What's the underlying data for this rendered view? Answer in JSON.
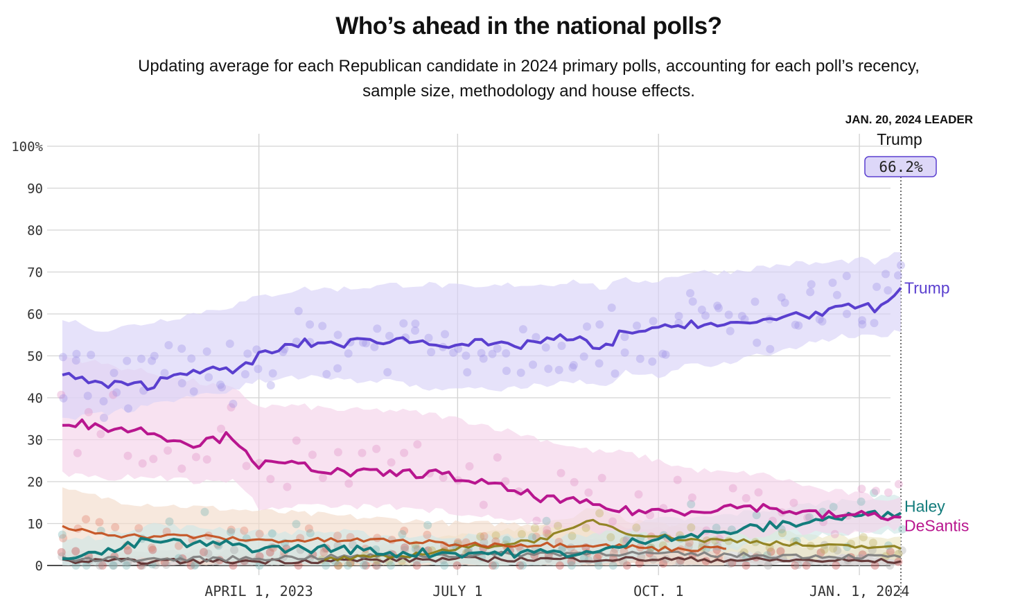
{
  "header": {
    "title": "Who’s ahead in the national polls?",
    "subtitle": "Updating average for each Republican candidate in 2024 primary polls, accounting for each poll’s recency, sample size, methodology and house effects."
  },
  "leader_box": {
    "heading": "JAN. 20, 2024 LEADER",
    "name": "Trump",
    "value": "66.2%"
  },
  "chart_data": {
    "type": "line",
    "title": "Who’s ahead in the national polls?",
    "xlabel": "",
    "ylabel": "",
    "ylim": [
      0,
      100
    ],
    "yticks": [
      0,
      10,
      20,
      30,
      40,
      50,
      60,
      70,
      80,
      90,
      100
    ],
    "ytick_labels": [
      "0",
      "10",
      "20",
      "30",
      "40",
      "50",
      "60",
      "70",
      "80",
      "90",
      "100%"
    ],
    "xlim": [
      "2023-01-01",
      "2024-01-20"
    ],
    "xticks": [
      {
        "date": "2023-04-01",
        "label": "APRIL 1, 2023"
      },
      {
        "date": "2023-07-01",
        "label": "JULY 1"
      },
      {
        "date": "2023-10-01",
        "label": "OCT. 1"
      },
      {
        "date": "2024-01-01",
        "label": "JAN. 1, 2024"
      }
    ],
    "grid": true,
    "legend": "end-labels",
    "series": [
      {
        "name": "Trump",
        "color": "#5a3fcf",
        "band_color": "#d9d2f7",
        "dot_color": "#9c8ee6",
        "label_offset": 0,
        "x": [
          "2023-01-01",
          "2023-01-20",
          "2023-02-10",
          "2023-03-01",
          "2023-03-20",
          "2023-04-01",
          "2023-04-20",
          "2023-05-10",
          "2023-06-01",
          "2023-06-20",
          "2023-07-10",
          "2023-07-25",
          "2023-08-10",
          "2023-08-25",
          "2023-09-05",
          "2023-09-15",
          "2023-10-01",
          "2023-10-15",
          "2023-11-01",
          "2023-11-15",
          "2023-12-01",
          "2023-12-15",
          "2024-01-01",
          "2024-01-10",
          "2024-01-20"
        ],
        "values": [
          45.5,
          43,
          43,
          47,
          46,
          50,
          53,
          53,
          54,
          53,
          53,
          52,
          54,
          54,
          51,
          56,
          56,
          58,
          57,
          58,
          60,
          60,
          62,
          61,
          66.2
        ],
        "band": [
          [
            35,
            59
          ],
          [
            36,
            56
          ],
          [
            38,
            58
          ],
          [
            40,
            60
          ],
          [
            42,
            62
          ],
          [
            44,
            64
          ],
          [
            45,
            66
          ],
          [
            44,
            66
          ],
          [
            44,
            67
          ],
          [
            42,
            67
          ],
          [
            42,
            66
          ],
          [
            42,
            67
          ],
          [
            43,
            67
          ],
          [
            44,
            68
          ],
          [
            42,
            66
          ],
          [
            46,
            68
          ],
          [
            45,
            68
          ],
          [
            48,
            70
          ],
          [
            48,
            70
          ],
          [
            50,
            71
          ],
          [
            52,
            72
          ],
          [
            54,
            72
          ],
          [
            55,
            73
          ],
          [
            54,
            72
          ],
          [
            56,
            75
          ]
        ]
      },
      {
        "name": "DeSantis",
        "color": "#b8168f",
        "band_color": "#f4d3e9",
        "dot_color": "#e08bc4",
        "label_offset": 12,
        "x": [
          "2023-01-01",
          "2023-01-20",
          "2023-02-10",
          "2023-03-01",
          "2023-03-20",
          "2023-04-01",
          "2023-04-20",
          "2023-05-10",
          "2023-06-01",
          "2023-06-20",
          "2023-07-10",
          "2023-07-25",
          "2023-08-10",
          "2023-08-25",
          "2023-09-05",
          "2023-09-15",
          "2023-10-01",
          "2023-10-15",
          "2023-11-01",
          "2023-11-15",
          "2023-12-01",
          "2023-12-15",
          "2024-01-01",
          "2024-01-10",
          "2024-01-20"
        ],
        "values": [
          34.5,
          33,
          32,
          29,
          31,
          24,
          24,
          22,
          22,
          22,
          20,
          18,
          16,
          15,
          14,
          13,
          13,
          13,
          14,
          14,
          13,
          12,
          12,
          12,
          11.5
        ],
        "band": [
          [
            22,
            50
          ],
          [
            21,
            48
          ],
          [
            21,
            46
          ],
          [
            20,
            44
          ],
          [
            20,
            42
          ],
          [
            14,
            38
          ],
          [
            14,
            38
          ],
          [
            14,
            37
          ],
          [
            14,
            37
          ],
          [
            13,
            36
          ],
          [
            12,
            34
          ],
          [
            11,
            32
          ],
          [
            10,
            30
          ],
          [
            9,
            28
          ],
          [
            8,
            27
          ],
          [
            8,
            27
          ],
          [
            7,
            25
          ],
          [
            7,
            23
          ],
          [
            7,
            22
          ],
          [
            7,
            22
          ],
          [
            8,
            20
          ],
          [
            8,
            18
          ],
          [
            8,
            17
          ],
          [
            9,
            16
          ],
          [
            9,
            16
          ]
        ]
      },
      {
        "name": "Haley",
        "color": "#137c7c",
        "band_color": "#cfe6e6",
        "dot_color": "#6fb1b1",
        "label_offset": -10,
        "x": [
          "2023-01-01",
          "2023-01-20",
          "2023-02-10",
          "2023-03-01",
          "2023-03-20",
          "2023-04-01",
          "2023-04-20",
          "2023-05-10",
          "2023-06-01",
          "2023-06-20",
          "2023-07-10",
          "2023-07-25",
          "2023-08-10",
          "2023-08-25",
          "2023-09-05",
          "2023-09-15",
          "2023-10-01",
          "2023-10-15",
          "2023-11-01",
          "2023-11-15",
          "2023-12-01",
          "2023-12-15",
          "2024-01-01",
          "2024-01-10",
          "2024-01-20"
        ],
        "values": [
          2.5,
          3,
          6,
          5,
          5,
          4,
          4,
          4,
          3,
          3,
          3,
          3,
          3,
          3,
          3,
          5,
          7,
          7,
          8,
          9,
          10,
          11,
          12,
          12,
          12.5
        ],
        "band": [
          [
            0,
            6
          ],
          [
            0,
            7
          ],
          [
            2,
            10
          ],
          [
            1,
            9
          ],
          [
            1,
            9
          ],
          [
            0,
            8
          ],
          [
            0,
            8
          ],
          [
            0,
            8
          ],
          [
            0,
            7
          ],
          [
            0,
            7
          ],
          [
            0,
            7
          ],
          [
            0,
            7
          ],
          [
            0,
            7
          ],
          [
            0,
            7
          ],
          [
            0,
            8
          ],
          [
            1,
            9
          ],
          [
            3,
            11
          ],
          [
            3,
            11
          ],
          [
            4,
            12
          ],
          [
            5,
            13
          ],
          [
            6,
            14
          ],
          [
            7,
            15
          ],
          [
            8,
            16
          ],
          [
            8,
            16
          ],
          [
            8,
            17
          ]
        ]
      },
      {
        "name": "",
        "color": "#c24a17",
        "band_color": "#f2dccb",
        "dot_color": "#e07a68",
        "x": [
          "2023-01-01",
          "2023-02-01",
          "2023-03-01",
          "2023-04-01",
          "2023-05-01",
          "2023-06-01",
          "2023-07-01",
          "2023-08-01",
          "2023-09-01",
          "2023-10-01",
          "2023-11-01"
        ],
        "values": [
          9,
          7,
          7,
          6,
          6,
          6,
          5,
          5,
          5,
          4,
          4
        ],
        "band": [
          [
            2,
            18
          ],
          [
            1,
            15
          ],
          [
            1,
            14
          ],
          [
            0,
            13
          ],
          [
            0,
            12
          ],
          [
            0,
            11
          ],
          [
            0,
            10
          ],
          [
            0,
            10
          ],
          [
            0,
            10
          ],
          [
            0,
            9
          ],
          [
            0,
            8
          ]
        ]
      },
      {
        "name": "",
        "color": "#8a7a12",
        "band_color": "#ece6c4",
        "dot_color": "#b9ab55",
        "x": [
          "2023-05-01",
          "2023-06-01",
          "2023-07-01",
          "2023-07-20",
          "2023-08-05",
          "2023-08-20",
          "2023-09-01",
          "2023-09-15",
          "2023-10-01",
          "2023-10-20",
          "2023-11-10",
          "2023-12-01",
          "2023-12-20",
          "2024-01-10",
          "2024-01-20"
        ],
        "values": [
          1.5,
          2,
          4,
          5,
          6,
          8,
          11,
          8,
          7,
          6,
          6,
          5,
          4.5,
          4.5,
          4
        ],
        "band": [
          [
            0,
            4
          ],
          [
            0,
            5
          ],
          [
            1,
            7
          ],
          [
            2,
            8
          ],
          [
            3,
            9
          ],
          [
            4,
            11
          ],
          [
            7,
            14
          ],
          [
            5,
            11
          ],
          [
            4,
            10
          ],
          [
            3,
            9
          ],
          [
            3,
            9
          ],
          [
            2,
            8
          ],
          [
            2,
            7
          ],
          [
            2,
            7
          ],
          [
            1,
            7
          ]
        ]
      },
      {
        "name": "",
        "color": "#7b7b7b",
        "band_color": "#d6d6d6",
        "dot_color": "#a3a3a3",
        "x": [
          "2023-01-01",
          "2023-03-01",
          "2023-05-01",
          "2023-07-01",
          "2023-09-01",
          "2023-11-01",
          "2024-01-20"
        ],
        "values": [
          1.5,
          1.5,
          2,
          2.5,
          3,
          2.5,
          2
        ],
        "band": [
          [
            0,
            3
          ],
          [
            0,
            3
          ],
          [
            0,
            4
          ],
          [
            0,
            5
          ],
          [
            0,
            6
          ],
          [
            0,
            5
          ],
          [
            0,
            4
          ]
        ]
      },
      {
        "name": "",
        "color": "#5a2a2a",
        "band_color": "#d9caca",
        "dot_color": "#c04040",
        "x": [
          "2023-01-01",
          "2023-04-01",
          "2023-07-01",
          "2023-10-01",
          "2024-01-20"
        ],
        "values": [
          1,
          1,
          1.5,
          1.5,
          1
        ],
        "band": [
          [
            0,
            2
          ],
          [
            0,
            2
          ],
          [
            0,
            3
          ],
          [
            0,
            3
          ],
          [
            0,
            2
          ]
        ]
      }
    ]
  }
}
